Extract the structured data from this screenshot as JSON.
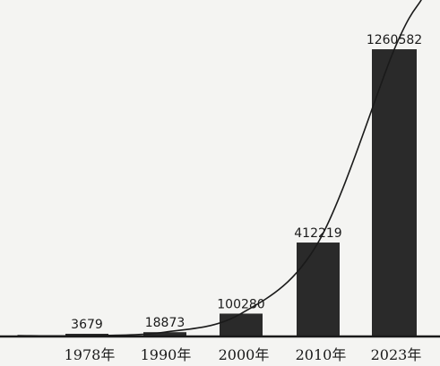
{
  "chart_data": {
    "type": "bar",
    "categories": [
      "1978年",
      "1990年",
      "2000年",
      "2010年",
      "2023年"
    ],
    "values": [
      3679,
      18873,
      100280,
      412219,
      1260582
    ],
    "data_labels": [
      "3679",
      "18873",
      "100280",
      "412219",
      "1260582"
    ],
    "title": "",
    "xlabel": "",
    "ylabel": "",
    "ylim": [
      0,
      1300000
    ],
    "grid": false,
    "legend": "none",
    "trend_line": true,
    "bar_color": "#2a2a2a",
    "line_color": "#1a1a1a",
    "background": "#f4f4f2"
  }
}
